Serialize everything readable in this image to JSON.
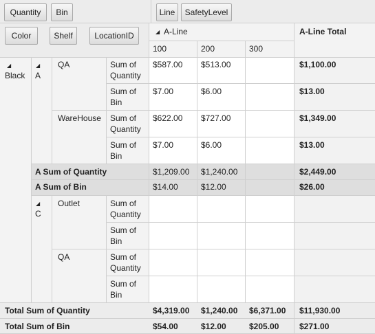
{
  "field_chips": {
    "filter": [
      "Quantity",
      "Bin"
    ],
    "column": [
      "Line",
      "SafetyLevel"
    ],
    "row": [
      "Color",
      "Shelf",
      "LocationID"
    ]
  },
  "header": {
    "line_label": "A-Line",
    "total_label": "A-Line Total",
    "columns": [
      "100",
      "200",
      "300"
    ]
  },
  "rows": {
    "color": "Black",
    "shelf_a": "A",
    "shelf_c": "C",
    "loc_qa": "QA",
    "loc_warehouse": "WareHouse",
    "loc_outlet": "Outlet",
    "loc_qa2": "QA",
    "sum_qty_l1": "Sum of",
    "sum_qty_l2": "Quantity",
    "sum_bin_l1": "Sum of",
    "sum_bin_l2": "Bin"
  },
  "values": {
    "qa_qty": [
      "$587.00",
      "$513.00",
      ""
    ],
    "qa_qty_total": "$1,100.00",
    "qa_bin": [
      "$7.00",
      "$6.00",
      ""
    ],
    "qa_bin_total": "$13.00",
    "wh_qty": [
      "$622.00",
      "$727.00",
      ""
    ],
    "wh_qty_total": "$1,349.00",
    "wh_bin": [
      "$7.00",
      "$6.00",
      ""
    ],
    "wh_bin_total": "$13.00"
  },
  "subtotals": {
    "a_qty_label": "A Sum of Quantity",
    "a_qty": [
      "$1,209.00",
      "$1,240.00",
      ""
    ],
    "a_qty_total": "$2,449.00",
    "a_bin_label": "A Sum of Bin",
    "a_bin": [
      "$14.00",
      "$12.00",
      ""
    ],
    "a_bin_total": "$26.00"
  },
  "grand_totals": {
    "qty_label": "Total Sum of Quantity",
    "qty": [
      "$4,319.00",
      "$1,240.00",
      "$6,371.00"
    ],
    "qty_total": "$11,930.00",
    "bin_label": "Total Sum of Bin",
    "bin": [
      "$54.00",
      "$12.00",
      "$205.00"
    ],
    "bin_total": "$271.00"
  },
  "colors": {
    "toolbar_bg": "#ececec",
    "subtotal_bg": "#dedede",
    "total_col_bg": "#f2f2f2",
    "grid_line": "#cfcfcf"
  }
}
